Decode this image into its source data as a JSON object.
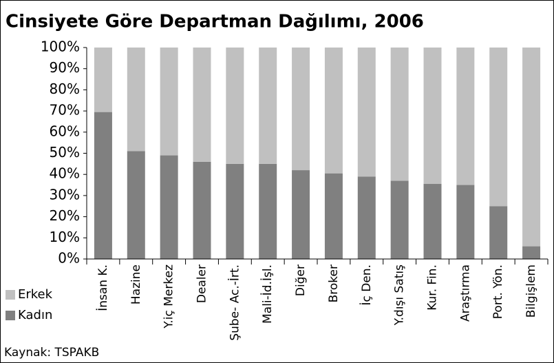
{
  "chart_data": {
    "type": "stacked_bar",
    "title": "Cinsiyete Göre Departman Dağılımı, 2006",
    "categories": [
      "İnsan K.",
      "Hazine",
      "Y.iç Merkez",
      "Dealer",
      "Şube- Ac.-İrt.",
      "Mali-İd.İşl.",
      "Diğer",
      "Broker",
      "İç Den.",
      "Y.dışı Satış",
      "Kur. Fin.",
      "Araştırma",
      "Port. Yön.",
      "Bilgişlem"
    ],
    "series": [
      {
        "name": "Kadın",
        "color": "#808080",
        "values": [
          69.5,
          51,
          49,
          46,
          45,
          45,
          42,
          40.5,
          39,
          37,
          35.5,
          35,
          25,
          6
        ]
      },
      {
        "name": "Erkek",
        "color": "#c0c0c0",
        "values": [
          30.5,
          49,
          51,
          54,
          55,
          55,
          58,
          59.5,
          61,
          63,
          64.5,
          65,
          75,
          94
        ]
      }
    ],
    "ylim": [
      0,
      100
    ],
    "yticks": [
      {
        "value": 0,
        "label": "0%"
      },
      {
        "value": 10,
        "label": "10%"
      },
      {
        "value": 20,
        "label": "20%"
      },
      {
        "value": 30,
        "label": "30%"
      },
      {
        "value": 40,
        "label": "40%"
      },
      {
        "value": 50,
        "label": "50%"
      },
      {
        "value": 60,
        "label": "60%"
      },
      {
        "value": 70,
        "label": "70%"
      },
      {
        "value": 80,
        "label": "80%"
      },
      {
        "value": 90,
        "label": "90%"
      },
      {
        "value": 100,
        "label": "100%"
      }
    ],
    "grid": false,
    "legend": "left",
    "source": "Kaynak: TSPAKB"
  }
}
